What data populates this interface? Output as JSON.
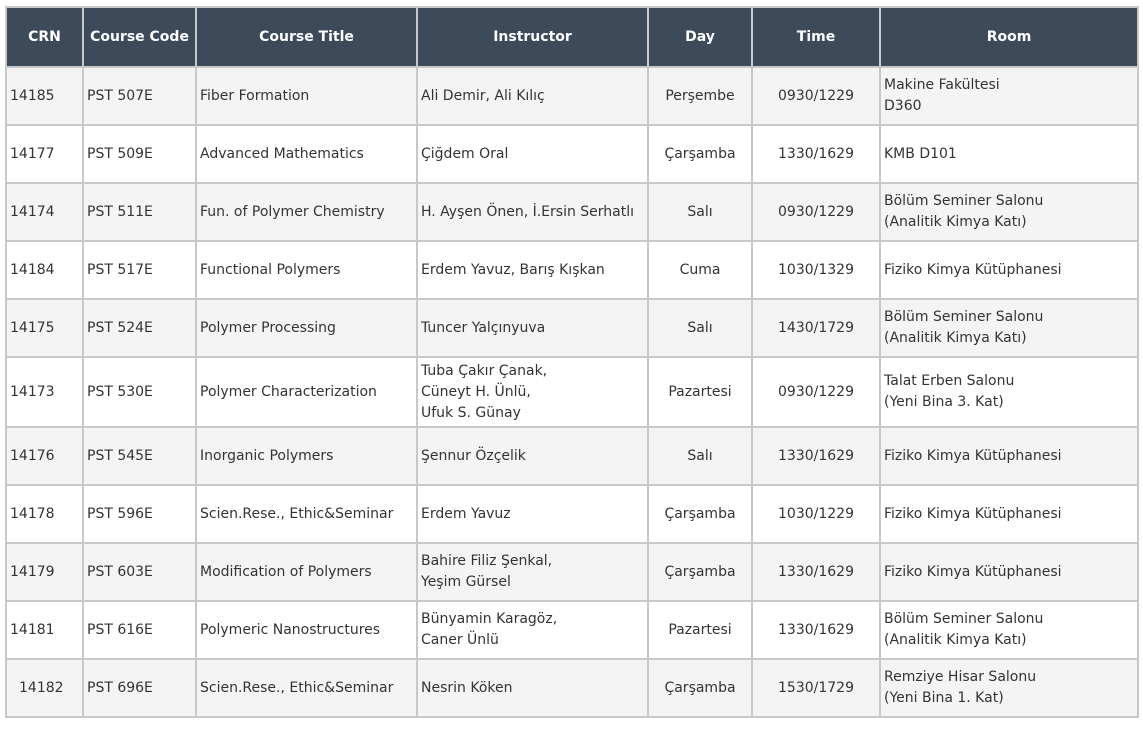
{
  "headers": {
    "crn": "CRN",
    "code": "Course Code",
    "title": "Course Title",
    "instructor": "Instructor",
    "day": "Day",
    "time": "Time",
    "room": "Room"
  },
  "rows": [
    {
      "crn": "14185",
      "code": "PST 507E",
      "title": "Fiber Formation",
      "instructor": [
        "Ali Demir, Ali Kılıç"
      ],
      "day": "Perşembe",
      "time": "0930/1229",
      "room": [
        "Makine Fakültesi",
        "D360"
      ]
    },
    {
      "crn": "14177",
      "code": "PST 509E",
      "title": "Advanced Mathematics",
      "instructor": [
        "Çiğdem Oral"
      ],
      "day": "Çarşamba",
      "time": "1330/1629",
      "room": [
        "KMB D101"
      ]
    },
    {
      "crn": "14174",
      "code": "PST 511E",
      "title": "Fun. of Polymer Chemistry",
      "instructor": [
        "H. Ayşen Önen, İ.Ersin Serhatlı"
      ],
      "day": "Salı",
      "time": "0930/1229",
      "room": [
        "Bölüm Seminer Salonu",
        "(Analitik Kimya Katı)"
      ]
    },
    {
      "crn": "14184",
      "code": "PST 517E",
      "title": "Functional Polymers",
      "instructor": [
        "Erdem Yavuz, Barış Kışkan"
      ],
      "day": "Cuma",
      "time": "1030/1329",
      "room": [
        "Fiziko Kimya Kütüphanesi"
      ]
    },
    {
      "crn": "14175",
      "code": "PST 524E",
      "title": "Polymer Processing",
      "instructor": [
        "Tuncer Yalçınyuva"
      ],
      "day": "Salı",
      "time": "1430/1729",
      "room": [
        "Bölüm Seminer Salonu",
        "(Analitik Kimya Katı)"
      ]
    },
    {
      "crn": "14173",
      "code": "PST 530E",
      "title": "Polymer Characterization",
      "instructor": [
        "Tuba Çakır Çanak,",
        "Cüneyt H. Ünlü,",
        "Ufuk S. Günay"
      ],
      "day": "Pazartesi",
      "time": "0930/1229",
      "room": [
        "Talat Erben Salonu",
        "(Yeni Bina 3. Kat)"
      ]
    },
    {
      "crn": "14176",
      "code": "PST 545E",
      "title": "Inorganic Polymers",
      "instructor": [
        "Şennur Özçelik"
      ],
      "day": "Salı",
      "time": "1330/1629",
      "room": [
        "Fiziko Kimya Kütüphanesi"
      ]
    },
    {
      "crn": "14178",
      "code": "PST 596E",
      "title": "Scien.Rese., Ethic&Seminar",
      "instructor": [
        "Erdem Yavuz"
      ],
      "day": "Çarşamba",
      "time": "1030/1229",
      "room": [
        "Fiziko Kimya Kütüphanesi"
      ]
    },
    {
      "crn": "14179",
      "code": "PST 603E",
      "title": "Modification of Polymers",
      "instructor": [
        "Bahire Filiz Şenkal,",
        "Yeşim Gürsel"
      ],
      "day": "Çarşamba",
      "time": "1330/1629",
      "room": [
        "Fiziko Kimya Kütüphanesi"
      ]
    },
    {
      "crn": "14181",
      "code": "PST 616E",
      "title": "Polymeric Nanostructures",
      "instructor": [
        "Bünyamin Karagöz,",
        "Caner Ünlü"
      ],
      "day": "Pazartesi",
      "time": "1330/1629",
      "room": [
        "Bölüm Seminer Salonu",
        "(Analitik Kimya Katı)"
      ]
    },
    {
      "crn": "14182",
      "code": "PST 696E",
      "title": "Scien.Rese., Ethic&Seminar",
      "instructor": [
        "Nesrin Köken"
      ],
      "day": "Çarşamba",
      "time": "1530/1729",
      "room": [
        "Remziye Hisar Salonu",
        "(Yeni Bina 1. Kat)"
      ]
    }
  ]
}
